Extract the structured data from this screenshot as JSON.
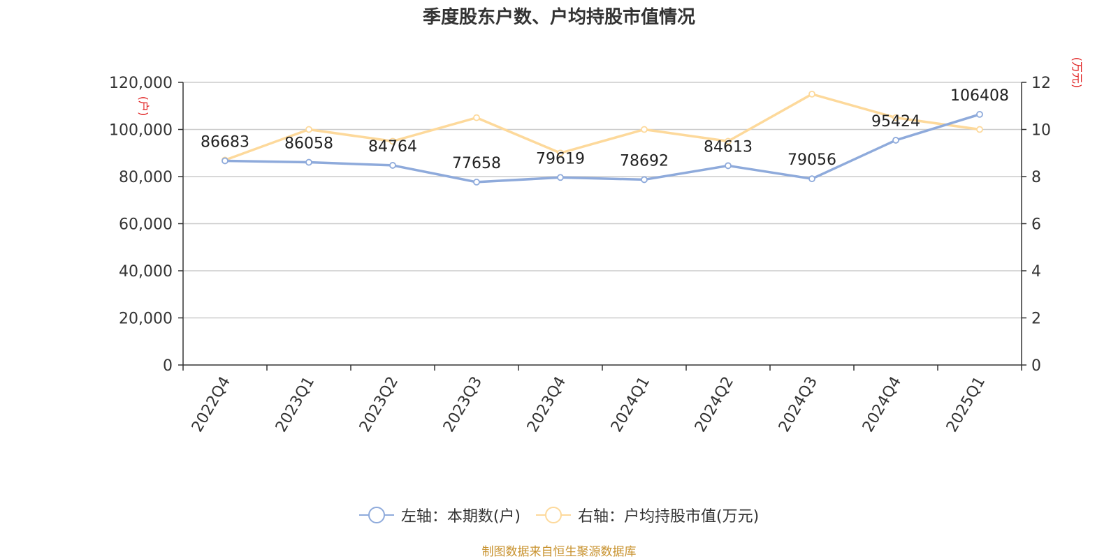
{
  "chart_data": {
    "type": "line",
    "title": "季度股东户数、户均持股市值情况",
    "categories": [
      "2022Q4",
      "2023Q1",
      "2023Q2",
      "2023Q3",
      "2023Q4",
      "2024Q1",
      "2024Q2",
      "2024Q3",
      "2024Q4",
      "2025Q1"
    ],
    "series": [
      {
        "name": "左轴：本期数(户)",
        "axis": "left",
        "color": "#8eaadb",
        "values": [
          86683,
          86058,
          84764,
          77658,
          79619,
          78692,
          84613,
          79056,
          95424,
          106408
        ]
      },
      {
        "name": "右轴：户均持股市值(万元)",
        "axis": "right",
        "color": "#fdd99b",
        "values": [
          8.7,
          10.0,
          9.5,
          10.5,
          9.0,
          10.0,
          9.5,
          11.5,
          10.5,
          10.0
        ]
      }
    ],
    "left_axis": {
      "unit_label": "(户)",
      "ylim": [
        0,
        120000
      ],
      "ticks": [
        "0",
        "20,000",
        "40,000",
        "60,000",
        "80,000",
        "100,000",
        "120,000"
      ]
    },
    "right_axis": {
      "unit_label": "(万元)",
      "ylim": [
        0,
        12
      ],
      "ticks": [
        "0",
        "2",
        "4",
        "6",
        "8",
        "10",
        "12"
      ]
    },
    "data_labels_series": 0,
    "grid": true,
    "legend_position": "bottom-center"
  },
  "source_text": "制图数据来自恒生聚源数据库",
  "colors": {
    "unit_label": "#e02020",
    "grid": "#cccccc",
    "axis": "#333333",
    "source": "#c8922e"
  }
}
